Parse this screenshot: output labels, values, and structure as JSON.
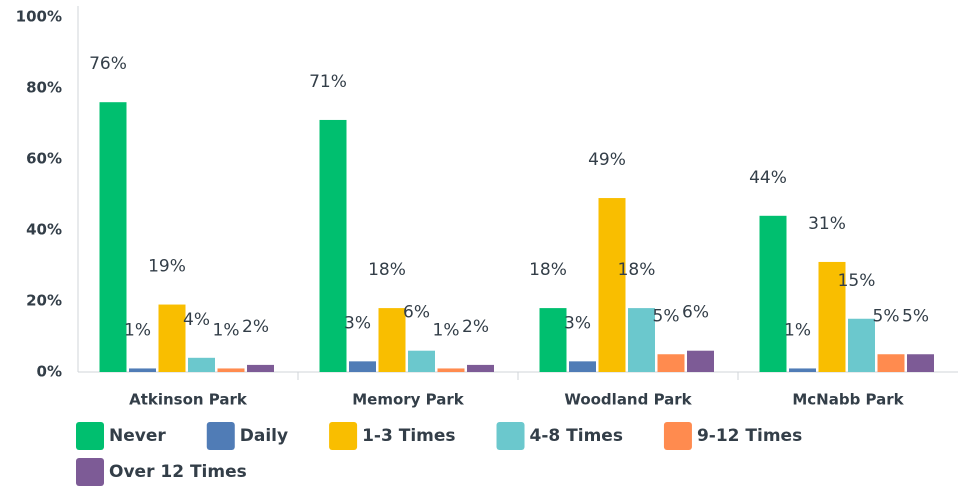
{
  "chart_data": {
    "type": "bar",
    "categories": [
      "Atkinson Park",
      "Memory Park",
      "Woodland Park",
      "McNabb Park"
    ],
    "series": [
      {
        "name": "Never",
        "color": "#00bf6f",
        "values": [
          76,
          71,
          18,
          44
        ],
        "value_labels": [
          "76%",
          "71%",
          "18%",
          "44%"
        ]
      },
      {
        "name": "Daily",
        "color": "#507cb6",
        "values": [
          1,
          3,
          3,
          1
        ],
        "value_labels": [
          "1%",
          "3%",
          "3%",
          "1%"
        ]
      },
      {
        "name": "1-3 Times",
        "color": "#f9be00",
        "values": [
          19,
          18,
          49,
          31
        ],
        "value_labels": [
          "19%",
          "18%",
          "49%",
          "31%"
        ]
      },
      {
        "name": "4-8 Times",
        "color": "#6bc8cd",
        "values": [
          4,
          6,
          18,
          15
        ],
        "value_labels": [
          "4%",
          "6%",
          "18%",
          "15%"
        ]
      },
      {
        "name": "9-12 Times",
        "color": "#ff8b4f",
        "values": [
          1,
          1,
          5,
          5
        ],
        "value_labels": [
          "1%",
          "1%",
          "5%",
          "5%"
        ]
      },
      {
        "name": "Over 12 Times",
        "color": "#7d5b96",
        "values": [
          2,
          2,
          6,
          5
        ],
        "value_labels": [
          "2%",
          "2%",
          "6%",
          "5%"
        ]
      }
    ],
    "ylim": [
      0,
      100
    ],
    "yticks": [
      {
        "value": 0,
        "label": "0%"
      },
      {
        "value": 20,
        "label": "20%"
      },
      {
        "value": 40,
        "label": "40%"
      },
      {
        "value": 60,
        "label": "60%"
      },
      {
        "value": 80,
        "label": "80%"
      },
      {
        "value": 100,
        "label": "100%"
      }
    ],
    "grid": false
  }
}
